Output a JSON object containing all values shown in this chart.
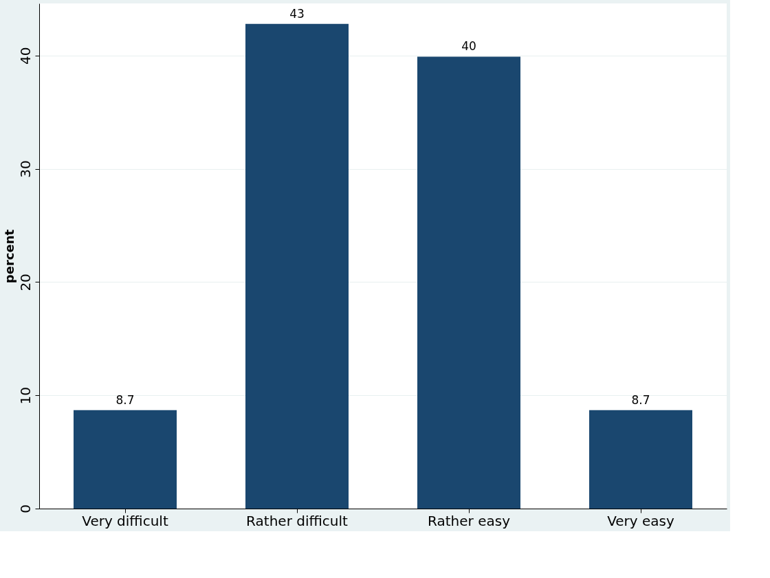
{
  "chart_data": {
    "type": "bar",
    "ylabel": "percent",
    "categories": [
      "Very difficult",
      "Rather difficult",
      "Rather easy",
      "Very easy"
    ],
    "values": [
      8.7,
      42.8,
      39.9,
      8.7
    ],
    "value_labels": [
      "8.7",
      "43",
      "40",
      "8.7"
    ],
    "color": "#1a476f",
    "ylim": [
      0,
      44.6
    ],
    "yticks": [
      0,
      10,
      20,
      30,
      40
    ],
    "grid": "y"
  }
}
